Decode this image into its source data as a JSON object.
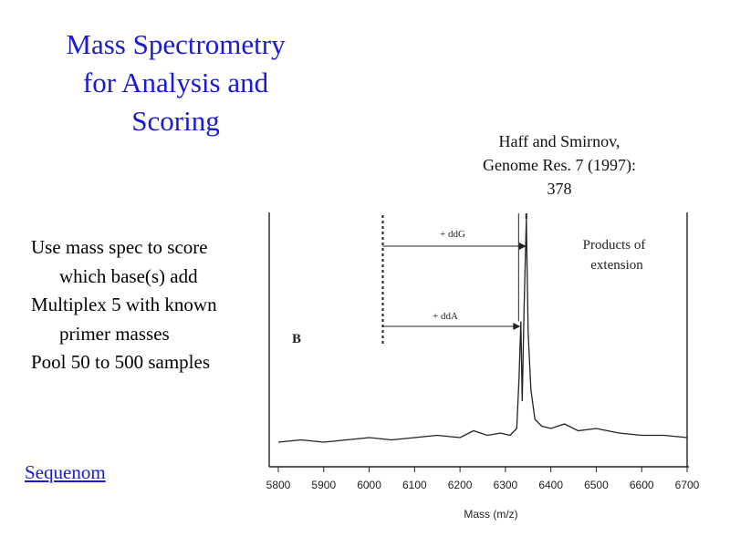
{
  "slide": {
    "title": [
      "Mass Spectrometry",
      "for Analysis and",
      "Scoring"
    ],
    "citation": [
      "Haff and Smirnov,",
      "Genome Res. 7 (1997):",
      "378"
    ],
    "bullets": [
      {
        "text": "Use mass spec to score",
        "level": 0
      },
      {
        "text": "which base(s) add",
        "level": 1
      },
      {
        "text": "Multiplex 5 with known",
        "level": 0
      },
      {
        "text": "primer masses",
        "level": 1
      },
      {
        "text": "Pool 50 to 500 samples",
        "level": 0
      }
    ],
    "link_label": "Sequenom",
    "colors": {
      "title": "#1a1ad2",
      "link": "#1a1ad2",
      "trace": "#222222"
    }
  },
  "chart_data": {
    "type": "line",
    "title": "",
    "panel_label": "B",
    "xlabel": "Mass (m/z)",
    "ylabel": "",
    "xlim": [
      5800,
      6700
    ],
    "xticks": [
      "5800",
      "5900",
      "6000",
      "6100",
      "6200",
      "6300",
      "6400",
      "6500",
      "6600",
      "6700"
    ],
    "grid": false,
    "annotations": {
      "ddG_label": "+ ddG",
      "ddA_label": "+ ddA",
      "products_label": [
        "Products of",
        "extension"
      ],
      "primer_mass": 6030,
      "ddG_peak_mass": 6346,
      "ddA_peak_mass": 6333
    },
    "series": [
      {
        "values_note": "relative intensity",
        "x": [
          5800,
          5850,
          5900,
          5950,
          6000,
          6050,
          6100,
          6150,
          6200,
          6230,
          6260,
          6290,
          6310,
          6325,
          6330,
          6334,
          6337,
          6341,
          6346,
          6350,
          6356,
          6365,
          6380,
          6400,
          6430,
          6460,
          6500,
          6550,
          6600,
          6650,
          6700
        ],
        "y": [
          0.02,
          0.03,
          0.02,
          0.03,
          0.04,
          0.03,
          0.04,
          0.05,
          0.04,
          0.07,
          0.05,
          0.06,
          0.05,
          0.08,
          0.3,
          0.55,
          0.2,
          0.6,
          1.0,
          0.5,
          0.25,
          0.12,
          0.09,
          0.08,
          0.1,
          0.07,
          0.08,
          0.06,
          0.05,
          0.05,
          0.04
        ]
      }
    ]
  }
}
